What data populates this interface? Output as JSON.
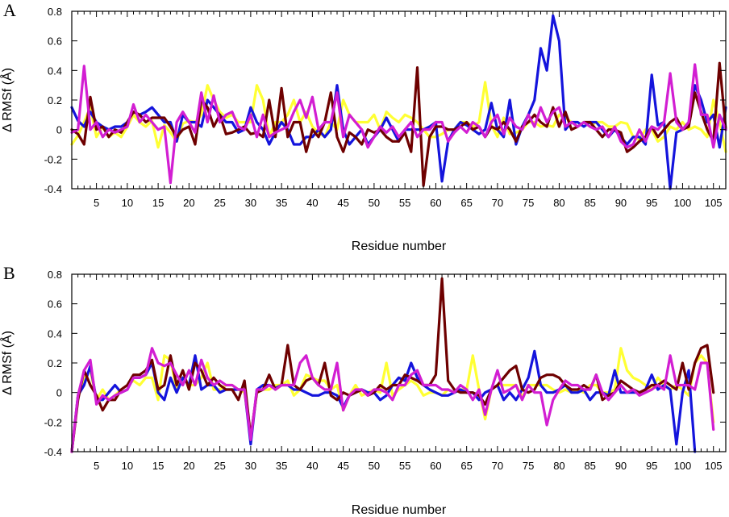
{
  "chart_data": [
    {
      "panel_label": "A",
      "type": "line",
      "xlabel": "Residue number",
      "ylabel": "Δ RMSf (Å)",
      "xlim": [
        1,
        107
      ],
      "ylim": [
        -0.4,
        0.8
      ],
      "xticks": [
        5,
        10,
        15,
        20,
        25,
        30,
        35,
        40,
        45,
        50,
        55,
        60,
        65,
        70,
        75,
        80,
        85,
        90,
        95,
        100,
        105
      ],
      "yticks": [
        -0.4,
        -0.2,
        0,
        0.2,
        0.4,
        0.6,
        0.8
      ],
      "ytick_labels": [
        "-0.4",
        "-0.2",
        "0",
        "0.2",
        "0.4",
        "0.6",
        "0.8"
      ],
      "grid": false,
      "series": [
        {
          "color": "#ffff33",
          "values": [
            -0.1,
            -0.04,
            0.05,
            0.15,
            -0.05,
            0.02,
            -0.05,
            -0.02,
            -0.05,
            0.02,
            0.1,
            0.05,
            0.02,
            0.06,
            -0.12,
            0.03,
            -0.02,
            -0.08,
            0.04,
            0.06,
            0.05,
            0.1,
            0.3,
            0.2,
            0.12,
            0.08,
            0.1,
            0.05,
            0.05,
            0.05,
            0.3,
            0.2,
            -0.05,
            0.05,
            0.05,
            0.1,
            0.2,
            0.05,
            0.12,
            0.02,
            -0.02,
            -0.05,
            0.05,
            0,
            0.2,
            0.1,
            0.05,
            0.05,
            0.05,
            0.1,
            0,
            0.12,
            0.08,
            0.05,
            0.1,
            0.08,
            0.05,
            0,
            -0.05,
            -0.05,
            -0.03,
            0,
            0,
            0.05,
            0.05,
            0.02,
            0.05,
            0.32,
            0.03,
            -0.05,
            0.08,
            -0.03,
            -0.02,
            0,
            0.05,
            0.05,
            0.02,
            0.03,
            0.02,
            0.1,
            0.08,
            0.05,
            0.02,
            0.05,
            0.02,
            0.05,
            0.05,
            0.02,
            0.02,
            0.05,
            0.04,
            -0.05,
            -0.07,
            0,
            0,
            -0.08,
            -0.05,
            0.02,
            0,
            0.05,
            0,
            0.02,
            0,
            -0.05,
            0.2,
            0.05,
            -0.15
          ]
        },
        {
          "color": "#1414dc",
          "values": [
            0.15,
            0.06,
            0.02,
            0.12,
            0.05,
            0.02,
            0,
            0.02,
            0.02,
            0.05,
            0.12,
            0.1,
            0.12,
            0.15,
            0.1,
            0.05,
            0.05,
            -0.08,
            0.1,
            0.05,
            0.05,
            0.02,
            0.2,
            0.15,
            0.1,
            0.05,
            0.05,
            -0.02,
            0,
            0.15,
            0.05,
            0,
            -0.1,
            -0.02,
            0.05,
            0,
            -0.1,
            -0.1,
            -0.05,
            -0.05,
            0,
            -0.05,
            0,
            0.3,
            0,
            -0.1,
            -0.05,
            0,
            -0.1,
            -0.05,
            0,
            0.08,
            0,
            -0.08,
            0,
            0,
            0,
            0,
            0.02,
            0.05,
            -0.35,
            -0.08,
            0,
            0.05,
            0.03,
            0,
            -0.03,
            0,
            0.18,
            0,
            -0.05,
            0.2,
            -0.1,
            0.02,
            0.1,
            0.2,
            0.55,
            0.4,
            0.77,
            0.6,
            0,
            0.05,
            0.05,
            0.02,
            0.05,
            0.05,
            0,
            -0.05,
            0,
            -0.05,
            -0.1,
            -0.05,
            -0.05,
            -0.1,
            0.37,
            0.03,
            0.05,
            -0.4,
            -0.02,
            0,
            0.05,
            0.3,
            0.2,
            0.05,
            0.1,
            -0.12,
            0.15
          ]
        },
        {
          "color": "#6e0000",
          "values": [
            0,
            -0.03,
            -0.1,
            0.22,
            0,
            0.02,
            -0.05,
            0,
            -0.02,
            0.05,
            0.12,
            0.1,
            0.05,
            0.08,
            0.08,
            0.08,
            0.02,
            -0.05,
            0,
            0.02,
            -0.1,
            0.2,
            0.15,
            0.02,
            0.1,
            -0.03,
            -0.02,
            0,
            0.02,
            -0.03,
            -0.02,
            -0.05,
            0.2,
            -0.05,
            0.28,
            -0.05,
            0.05,
            0.05,
            -0.15,
            0,
            -0.05,
            0.05,
            0.25,
            -0.05,
            -0.15,
            -0.02,
            -0.05,
            -0.1,
            0,
            -0.02,
            0,
            -0.05,
            -0.08,
            -0.08,
            -0.02,
            -0.15,
            0.42,
            -0.38,
            -0.05,
            0.02,
            0.02,
            0,
            0,
            0.02,
            0.05,
            0,
            0.02,
            -0.05,
            0.02,
            0,
            0.05,
            0,
            -0.08,
            0.02,
            0.05,
            0.1,
            0.05,
            0.02,
            0.15,
            0.02,
            0.12,
            0,
            0.02,
            0.05,
            0.05,
            0,
            -0.05,
            0,
            0,
            -0.02,
            -0.15,
            -0.12,
            -0.08,
            -0.05,
            0.02,
            -0.05,
            0,
            0.05,
            0.08,
            0,
            0.02,
            0.25,
            0.12,
            0,
            -0.08,
            0.45,
            0
          ]
        },
        {
          "color": "#d21ed2",
          "values": [
            -0.02,
            0,
            0.43,
            0,
            0.05,
            -0.05,
            0,
            -0.02,
            0,
            0.02,
            0.17,
            0.05,
            0.1,
            0.05,
            0,
            0.02,
            -0.36,
            0.05,
            0.12,
            0.05,
            -0.02,
            0.25,
            0.05,
            0.23,
            0.05,
            0.1,
            0.12,
            0.02,
            0,
            0.1,
            -0.05,
            0.1,
            -0.05,
            -0.02,
            0,
            0.02,
            0.12,
            0.2,
            0.08,
            0.22,
            0,
            0.05,
            0.05,
            0.25,
            -0.05,
            0.1,
            0.05,
            0,
            -0.12,
            -0.05,
            0.02,
            -0.02,
            0.02,
            -0.05,
            0,
            0.05,
            -0.05,
            0,
            0,
            0.05,
            0.05,
            -0.08,
            -0.02,
            0.02,
            -0.02,
            0.05,
            0.02,
            -0.05,
            0.05,
            0.1,
            -0.03,
            0.08,
            0.02,
            0,
            0.1,
            0.02,
            0.15,
            0.05,
            0.12,
            0.15,
            0.02,
            0.05,
            0.02,
            0.05,
            0.02,
            0,
            0.02,
            -0.05,
            0.02,
            -0.08,
            -0.12,
            -0.1,
            0,
            -0.08,
            0.02,
            0,
            0.05,
            0.38,
            0.05,
            0,
            0.05,
            0.44,
            0.1,
            0.1,
            -0.12,
            0.1,
            0
          ]
        }
      ]
    },
    {
      "panel_label": "B",
      "type": "line",
      "xlabel": "Residue number",
      "ylabel": "Δ RMSf (Å)",
      "xlim": [
        1,
        107
      ],
      "ylim": [
        -0.4,
        0.8
      ],
      "xticks": [
        5,
        10,
        15,
        20,
        25,
        30,
        35,
        40,
        45,
        50,
        55,
        60,
        65,
        70,
        75,
        80,
        85,
        90,
        95,
        100,
        105
      ],
      "yticks": [
        -0.4,
        -0.2,
        0,
        0.2,
        0.4,
        0.6,
        0.8
      ],
      "ytick_labels": [
        "-0.4",
        "-0.2",
        "0",
        "0.2",
        "0.4",
        "0.6",
        "0.8"
      ],
      "grid": false,
      "series": [
        {
          "color": "#ffff33",
          "values": [
            -0.4,
            -0.02,
            0.1,
            0.15,
            -0.05,
            0.02,
            -0.05,
            -0.02,
            0.02,
            0.05,
            0.08,
            0.05,
            0.1,
            0.1,
            -0.05,
            0.25,
            0.22,
            0.02,
            0.1,
            0.05,
            0.05,
            0.1,
            0.2,
            0.02,
            0.02,
            0.05,
            0.05,
            0.02,
            0,
            -0.3,
            0,
            0.02,
            0.02,
            0.05,
            0.05,
            0.08,
            -0.02,
            0.02,
            0.12,
            0.1,
            0.08,
            0.08,
            0.02,
            0.05,
            -0.12,
            -0.02,
            0.05,
            -0.02,
            0,
            0.02,
            0,
            0.2,
            -0.02,
            0.02,
            0.05,
            0.08,
            0.05,
            -0.02,
            0,
            0,
            -0.02,
            0.02,
            0,
            0.02,
            0.02,
            0.25,
            0.02,
            -0.18,
            0.02,
            0.05,
            0.05,
            0.05,
            0.05,
            -0.03,
            0.05,
            0.05,
            0.05,
            0.05,
            0.02,
            0,
            0.02,
            0,
            0.02,
            0,
            0.05,
            0.05,
            0,
            0,
            0.02,
            0.3,
            0.15,
            0.1,
            0.08,
            0.05,
            0.02,
            0.1,
            0.05,
            0.02,
            0.05,
            0.02,
            -0.02,
            0.2,
            0.25,
            0.2,
            -0.2
          ]
        },
        {
          "color": "#1414dc",
          "values": [
            -0.4,
            -0.02,
            0.05,
            0.18,
            -0.05,
            -0.05,
            0,
            0.05,
            0,
            0.02,
            0.1,
            0.1,
            0.12,
            0.2,
            0,
            -0.05,
            0.1,
            0,
            0.1,
            0.05,
            0.25,
            0.02,
            0.05,
            0.05,
            0,
            0.02,
            0.02,
            0.02,
            0.02,
            -0.35,
            0.02,
            0.05,
            0.05,
            0.03,
            0.05,
            0.05,
            0.02,
            0.02,
            0,
            -0.02,
            -0.02,
            0,
            0,
            -0.02,
            -0.1,
            -0.02,
            0,
            0.02,
            0,
            0,
            -0.05,
            -0.02,
            0.05,
            0.1,
            0.08,
            0.2,
            0.1,
            0.05,
            0.02,
            0,
            -0.02,
            -0.02,
            0,
            0.02,
            0,
            0,
            -0.05,
            0,
            0.02,
            0.05,
            -0.05,
            0,
            -0.05,
            0.02,
            0.1,
            0.28,
            0.05,
            0,
            0,
            0.02,
            0.05,
            0,
            0,
            0.02,
            -0.05,
            0,
            0,
            -0.02,
            0.15,
            0,
            0,
            0,
            0,
            0.02,
            0.12,
            0.02,
            0.05,
            0.02,
            -0.35,
            0,
            0.15,
            -0.4
          ]
        },
        {
          "color": "#6e0000",
          "values": [
            -0.4,
            -0.05,
            0.15,
            0.05,
            -0.02,
            -0.12,
            -0.05,
            -0.05,
            0.02,
            0.05,
            0.12,
            0.12,
            0.15,
            0.22,
            0.02,
            0.05,
            0.25,
            0.05,
            0.15,
            0.02,
            0.2,
            0.15,
            0.05,
            0.1,
            0.05,
            0.02,
            0.02,
            -0.05,
            0.08,
            -0.3,
            0,
            0.02,
            0.12,
            0.02,
            0.05,
            0.32,
            0.05,
            0.02,
            0.08,
            0.1,
            0.05,
            0.2,
            -0.02,
            -0.05,
            0,
            -0.02,
            0,
            0.02,
            -0.02,
            0,
            0.05,
            0.02,
            0.05,
            0.05,
            0.12,
            0.1,
            0.08,
            0.05,
            0.05,
            0.12,
            0.77,
            0.08,
            0.02,
            0,
            0,
            0,
            -0.02,
            -0.08,
            0.02,
            0.05,
            0.1,
            0.15,
            0.18,
            0.02,
            0,
            0.02,
            0.1,
            0.12,
            0.12,
            0.1,
            0.05,
            0.02,
            0.02,
            0.05,
            0.02,
            0.12,
            -0.05,
            -0.02,
            0,
            0.08,
            0.05,
            0.02,
            0,
            0.02,
            0.05,
            0.05,
            0.08,
            0.05,
            0.02,
            0.2,
            0.02,
            0.2,
            0.3,
            0.32,
            0
          ]
        },
        {
          "color": "#d21ed2",
          "values": [
            -0.4,
            -0.02,
            0.15,
            0.22,
            -0.08,
            -0.02,
            -0.05,
            -0.02,
            0,
            0.02,
            0.1,
            0.1,
            0.12,
            0.3,
            0.2,
            0.18,
            0.2,
            0.12,
            0.05,
            0.15,
            0.05,
            0.22,
            0.1,
            0.05,
            0.08,
            0.05,
            0.05,
            0.02,
            0.02,
            -0.32,
            0.02,
            0.02,
            0.05,
            0.02,
            0.05,
            0.05,
            0.05,
            0.2,
            0.25,
            0.1,
            0.05,
            0.02,
            0.02,
            0.2,
            -0.12,
            -0.02,
            0.02,
            0.02,
            -0.02,
            0.02,
            0.02,
            0,
            -0.05,
            0.05,
            0.05,
            0.12,
            0.15,
            0.05,
            0.05,
            0.05,
            0.02,
            0.02,
            0,
            0.05,
            0.02,
            -0.05,
            0.02,
            -0.15,
            0.02,
            0.15,
            0,
            0.02,
            0.05,
            -0.05,
            0.05,
            0,
            0,
            -0.22,
            -0.05,
            0.02,
            0.08,
            0.05,
            0.05,
            0.02,
            0.02,
            0.12,
            0,
            -0.05,
            0,
            0.05,
            0,
            0.02,
            -0.02,
            0,
            0.02,
            0.05,
            0.02,
            0.25,
            0.05,
            0.05,
            0.05,
            0.02,
            0.2,
            0.2,
            -0.25
          ]
        }
      ]
    }
  ]
}
